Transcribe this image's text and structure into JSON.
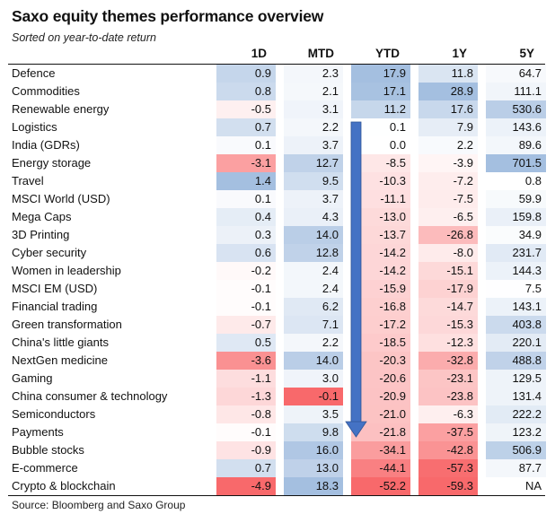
{
  "header": {
    "title": "Saxo equity themes performance overview",
    "subtitle": "Sorted on year-to-date return"
  },
  "chart_data": {
    "type": "table",
    "columns": [
      "1D",
      "MTD",
      "YTD",
      "1Y",
      "5Y"
    ],
    "rows": [
      {
        "label": "Defence",
        "values": [
          "0.9",
          "2.3",
          "17.9",
          "11.8",
          "64.7"
        ]
      },
      {
        "label": "Commodities",
        "values": [
          "0.8",
          "2.1",
          "17.1",
          "28.9",
          "111.1"
        ]
      },
      {
        "label": "Renewable energy",
        "values": [
          "-0.5",
          "3.1",
          "11.2",
          "17.6",
          "530.6"
        ]
      },
      {
        "label": "Logistics",
        "values": [
          "0.7",
          "2.2",
          "0.1",
          "7.9",
          "143.6"
        ]
      },
      {
        "label": "India (GDRs)",
        "values": [
          "0.1",
          "3.7",
          "0.0",
          "2.2",
          "89.6"
        ]
      },
      {
        "label": "Energy storage",
        "values": [
          "-3.1",
          "12.7",
          "-8.5",
          "-3.9",
          "701.5"
        ]
      },
      {
        "label": "Travel",
        "values": [
          "1.4",
          "9.5",
          "-10.3",
          "-7.2",
          "0.8"
        ]
      },
      {
        "label": "MSCI World (USD)",
        "values": [
          "0.1",
          "3.7",
          "-11.1",
          "-7.5",
          "59.9"
        ]
      },
      {
        "label": "Mega Caps",
        "values": [
          "0.4",
          "4.3",
          "-13.0",
          "-6.5",
          "159.8"
        ]
      },
      {
        "label": "3D Printing",
        "values": [
          "0.3",
          "14.0",
          "-13.7",
          "-26.8",
          "34.9"
        ]
      },
      {
        "label": "Cyber security",
        "values": [
          "0.6",
          "12.8",
          "-14.2",
          "-8.0",
          "231.7"
        ]
      },
      {
        "label": "Women in leadership",
        "values": [
          "-0.2",
          "2.4",
          "-14.2",
          "-15.1",
          "144.3"
        ]
      },
      {
        "label": "MSCI EM (USD)",
        "values": [
          "-0.1",
          "2.4",
          "-15.9",
          "-17.9",
          "7.5"
        ]
      },
      {
        "label": "Financial trading",
        "values": [
          "-0.1",
          "6.2",
          "-16.8",
          "-14.7",
          "143.1"
        ]
      },
      {
        "label": "Green transformation",
        "values": [
          "-0.7",
          "7.1",
          "-17.2",
          "-15.3",
          "403.8"
        ]
      },
      {
        "label": "China's little giants",
        "values": [
          "0.5",
          "2.2",
          "-18.5",
          "-12.3",
          "220.1"
        ]
      },
      {
        "label": "NextGen medicine",
        "values": [
          "-3.6",
          "14.0",
          "-20.3",
          "-32.8",
          "488.8"
        ]
      },
      {
        "label": "Gaming",
        "values": [
          "-1.1",
          "3.0",
          "-20.6",
          "-23.1",
          "129.5"
        ]
      },
      {
        "label": "China consumer & technology",
        "values": [
          "-1.3",
          "-0.1",
          "-20.9",
          "-23.8",
          "131.4"
        ]
      },
      {
        "label": "Semiconductors",
        "values": [
          "-0.8",
          "3.5",
          "-21.0",
          "-6.3",
          "222.2"
        ]
      },
      {
        "label": "Payments",
        "values": [
          "-0.1",
          "9.8",
          "-21.8",
          "-37.5",
          "123.2"
        ]
      },
      {
        "label": "Bubble stocks",
        "values": [
          "-0.9",
          "16.0",
          "-34.1",
          "-42.8",
          "506.9"
        ]
      },
      {
        "label": "E-commerce",
        "values": [
          "0.7",
          "13.0",
          "-44.1",
          "-57.3",
          "87.7"
        ]
      },
      {
        "label": "Crypto & blockchain",
        "values": [
          "-4.9",
          "18.3",
          "-52.2",
          "-59.3",
          "NA"
        ]
      }
    ],
    "color_scale": {
      "negative": "#f8696b",
      "positive": "#5a8ac6",
      "neutral": "#ffffff"
    },
    "arrow_color": "#4472c4"
  },
  "footer": {
    "source": "Source: Bloomberg and Saxo Group"
  }
}
